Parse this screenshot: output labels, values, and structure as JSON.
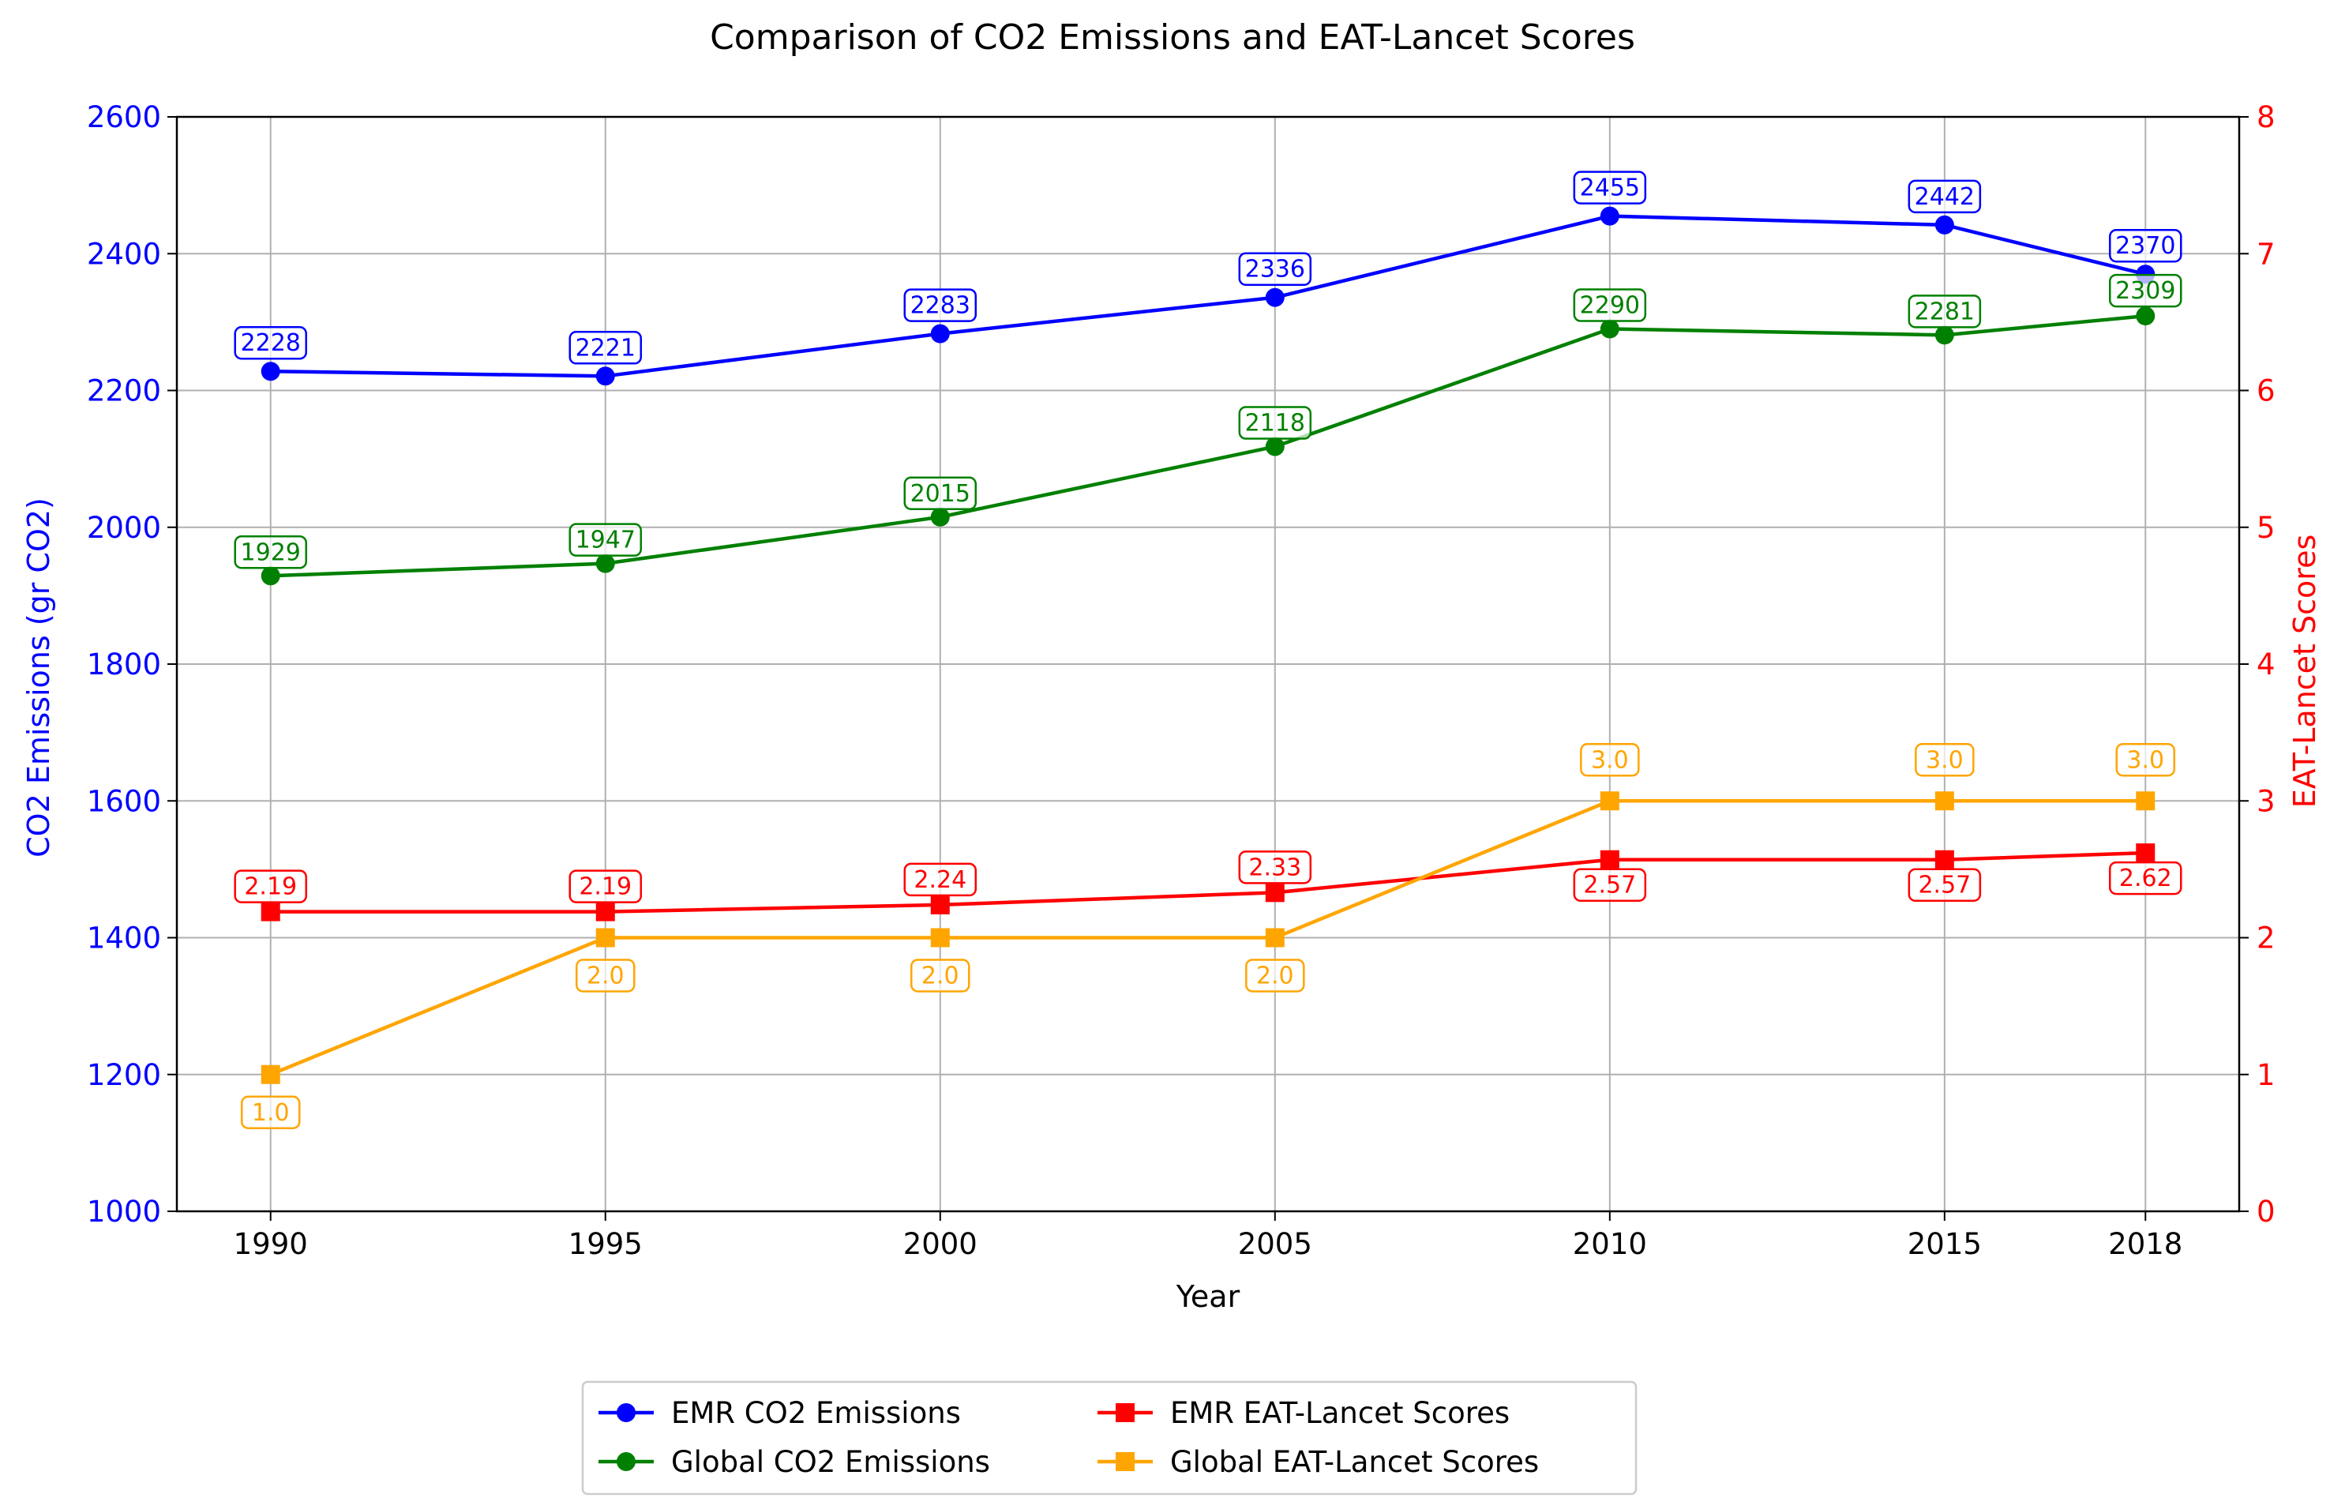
{
  "chart_data": {
    "type": "line",
    "title": "Comparison of CO2 Emissions and EAT-Lancet Scores",
    "xlabel": "Year",
    "ylabel_left": "CO2 Emissions (gr CO2)",
    "ylabel_right": "EAT-Lancet Scores",
    "x": [
      1990,
      1995,
      2000,
      2005,
      2010,
      2015,
      2018
    ],
    "xticks": [
      "1990",
      "1995",
      "2000",
      "2005",
      "2010",
      "2015",
      "2018"
    ],
    "ylim_left": [
      1000,
      2600
    ],
    "ylim_right": [
      0,
      8
    ],
    "yticks_left": [
      "1000",
      "1200",
      "1400",
      "1600",
      "1800",
      "2000",
      "2200",
      "2400",
      "2600"
    ],
    "yticks_right": [
      "0",
      "1",
      "2",
      "3",
      "4",
      "5",
      "6",
      "7",
      "8"
    ],
    "grid": true,
    "legend_position": "bottom-center",
    "colors": {
      "left_axis": "#0000ff",
      "right_axis": "#ff0000",
      "grid": "#b0b0b0",
      "axes": "#000000"
    },
    "series": [
      {
        "name": "EMR CO2 Emissions",
        "axis": "left",
        "color": "#0000ff",
        "marker": "circle",
        "values": [
          2228,
          2221,
          2283,
          2336,
          2455,
          2442,
          2370
        ],
        "labels": [
          "2228",
          "2221",
          "2283",
          "2336",
          "2455",
          "2442",
          "2370"
        ],
        "label_position": "above"
      },
      {
        "name": "Global CO2 Emissions",
        "axis": "left",
        "color": "#008000",
        "marker": "circle",
        "values": [
          1929,
          1947,
          2015,
          2118,
          2290,
          2281,
          2309
        ],
        "labels": [
          "1929",
          "1947",
          "2015",
          "2118",
          "2290",
          "2281",
          "2309"
        ],
        "label_position": "above"
      },
      {
        "name": "EMR EAT-Lancet Scores",
        "axis": "right",
        "color": "#ff0000",
        "marker": "square",
        "values": [
          2.19,
          2.19,
          2.24,
          2.33,
          2.57,
          2.57,
          2.62
        ],
        "labels": [
          "2.19",
          "2.19",
          "2.24",
          "2.33",
          "2.57",
          "2.57",
          "2.62"
        ],
        "label_position": "mixed"
      },
      {
        "name": "Global EAT-Lancet Scores",
        "axis": "right",
        "color": "#ffa500",
        "marker": "square",
        "values": [
          1.0,
          2.0,
          2.0,
          2.0,
          3.0,
          3.0,
          3.0
        ],
        "labels": [
          "1.0",
          "2.0",
          "2.0",
          "2.0",
          "3.0",
          "3.0",
          "3.0"
        ],
        "label_position": "mixed"
      }
    ]
  }
}
